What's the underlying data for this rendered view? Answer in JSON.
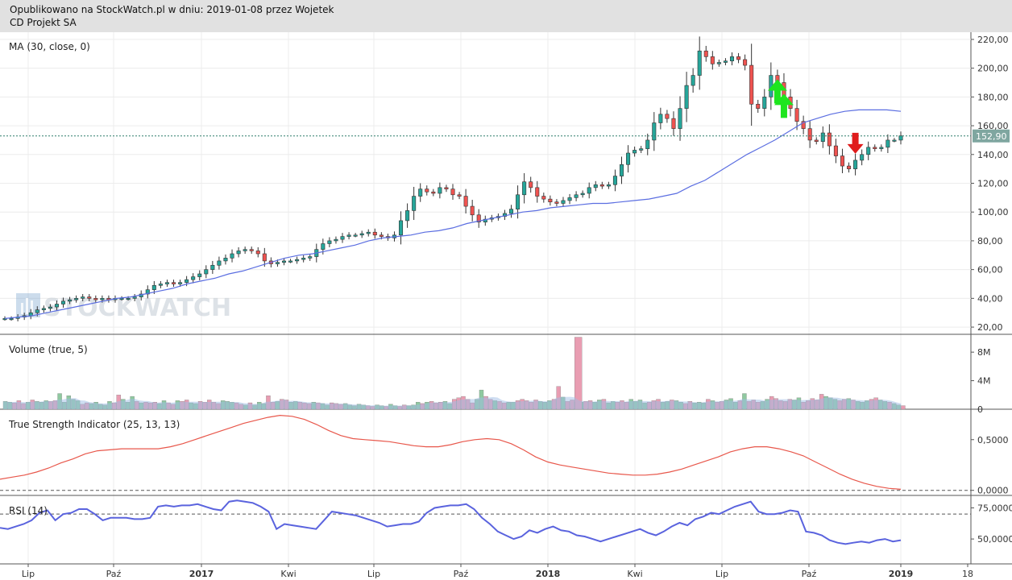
{
  "header": {
    "line1": "Opublikowano na StockWatch.pl w dniu: 2019-01-08 przez Wojetek",
    "line2": "CD Projekt SA"
  },
  "watermark": "STOCKWATCH",
  "colors": {
    "up": "#26a69a",
    "down": "#ef5350",
    "ma": "#5b6ee1",
    "tsi": "#e8574b",
    "rsi": "#5a63de",
    "buy_arrow": "#1ee51e",
    "sell_arrow": "#e01c1c",
    "last_price_bg": "#7fa6a0"
  },
  "x_axis": [
    "Lip",
    "Paź",
    "2017",
    "Kwi",
    "Lip",
    "Paź",
    "2018",
    "Kwi",
    "Lip",
    "Paź",
    "2019",
    "18"
  ],
  "chart_data": [
    {
      "type": "candlestick",
      "panel": "price",
      "title": "MA (30, close, 0)",
      "ylim": [
        15,
        225
      ],
      "yticks": [
        20,
        40,
        60,
        80,
        100,
        120,
        140,
        160,
        180,
        200,
        220
      ],
      "ytick_labels": [
        "20,00",
        "40,00",
        "60,00",
        "80,00",
        "100,00",
        "120,00",
        "140,00",
        "160,00",
        "180,00",
        "200,00",
        "220,00"
      ],
      "last_price": 152.9,
      "last_price_label": "152,90",
      "close": [
        26,
        26,
        27,
        28,
        30,
        32,
        33,
        34,
        36,
        38,
        39,
        40,
        41,
        40,
        39,
        40,
        39,
        40,
        40,
        40,
        41,
        43,
        46,
        49,
        50,
        51,
        50,
        51,
        53,
        55,
        57,
        60,
        63,
        66,
        68,
        71,
        73,
        74,
        73,
        71,
        66,
        64,
        65,
        66,
        66,
        67,
        68,
        69,
        74,
        78,
        80,
        81,
        83,
        84,
        84,
        85,
        86,
        84,
        83,
        82,
        84,
        94,
        101,
        111,
        116,
        114,
        113,
        117,
        116,
        112,
        111,
        104,
        98,
        93,
        95,
        96,
        97,
        99,
        102,
        112,
        121,
        117,
        111,
        109,
        107,
        106,
        108,
        110,
        112,
        113,
        117,
        119,
        118,
        119,
        125,
        133,
        141,
        143,
        144,
        150,
        162,
        168,
        165,
        158,
        172,
        188,
        195,
        212,
        208,
        203,
        204,
        205,
        208,
        206,
        202,
        175,
        172,
        180,
        195,
        190,
        180,
        172,
        163,
        158,
        150,
        149,
        155,
        146,
        139,
        132,
        130,
        136,
        140,
        145,
        144,
        145,
        150,
        150,
        153
      ],
      "ma30": [
        26,
        27,
        28,
        30,
        32,
        34,
        36,
        38,
        40,
        41,
        43,
        45,
        47,
        50,
        52,
        54,
        57,
        59,
        62,
        65,
        68,
        70,
        71,
        73,
        75,
        77,
        80,
        82,
        83,
        84,
        86,
        87,
        89,
        92,
        94,
        96,
        98,
        100,
        101,
        103,
        104,
        105,
        106,
        106,
        107,
        108,
        109,
        111,
        113,
        118,
        122,
        128,
        134,
        140,
        145,
        150,
        156,
        162,
        165,
        168,
        170,
        171,
        171,
        171,
        170
      ],
      "buy_signals": [
        119,
        120,
        148
      ],
      "sell_signals": [
        131,
        148
      ]
    },
    {
      "type": "bar",
      "panel": "volume",
      "title": "Volume (true, 5)",
      "ylim": [
        0,
        10.5
      ],
      "yticks": [
        0,
        4,
        8
      ],
      "ytick_labels": [
        "0",
        "4M",
        "8M"
      ],
      "values": [
        1.1,
        1.0,
        0.9,
        1.2,
        0.8,
        1.0,
        1.3,
        1.1,
        1.0,
        1.2,
        1.1,
        1.2,
        2.2,
        1.0,
        1.9,
        1.4,
        1.2,
        0.7,
        0.9,
        0.8,
        1.0,
        0.7,
        0.6,
        1.1,
        0.9,
        2.0,
        1.4,
        1.0,
        1.8,
        1.1,
        0.9,
        1.0,
        0.9,
        1.0,
        0.8,
        1.2,
        0.9,
        0.7,
        1.2,
        1.1,
        1.3,
        0.9,
        0.8,
        1.1,
        1.0,
        1.3,
        1.0,
        0.8,
        1.2,
        1.1,
        1.0,
        0.9,
        0.7,
        0.6,
        0.9,
        0.6,
        1.0,
        0.8,
        1.9,
        1.0,
        1.1,
        1.4,
        1.3,
        1.0,
        1.1,
        1.0,
        0.9,
        0.8,
        1.0,
        0.9,
        0.8,
        0.6,
        0.9,
        0.8,
        0.7,
        0.8,
        0.6,
        0.5,
        0.7,
        0.6,
        0.5,
        0.4,
        0.6,
        0.5,
        0.4,
        0.7,
        0.5,
        0.4,
        0.6,
        0.5,
        0.6,
        1.0,
        0.8,
        1.0,
        1.1,
        0.9,
        1.0,
        1.1,
        0.8,
        1.4,
        1.6,
        1.8,
        1.4,
        0.9,
        1.4,
        2.7,
        1.8,
        1.4,
        1.2,
        1.1,
        0.9,
        1.0,
        1.0,
        1.2,
        1.4,
        1.2,
        1.0,
        1.3,
        1.1,
        1.0,
        1.2,
        1.4,
        3.2,
        1.7,
        1.1,
        1.3,
        1.0,
        1.0,
        1.1,
        1.2,
        1.0,
        1.3,
        1.4,
        0.9,
        1.1,
        1.0,
        1.2,
        1.0,
        1.4,
        1.1,
        1.3,
        0.9,
        1.0,
        1.2,
        1.4,
        1.0,
        1.1,
        1.3,
        1.2,
        1.0,
        0.8,
        1.1,
        0.9,
        1.0,
        0.9,
        1.4,
        1.2,
        1.0,
        1.1,
        1.3,
        1.5,
        1.0,
        1.2,
        2.2,
        1.1,
        1.3,
        1.0,
        1.1,
        1.4,
        1.8,
        1.5,
        1.2,
        1.1,
        1.4,
        1.3,
        1.6,
        1.0,
        1.2,
        1.5,
        1.3,
        2.1,
        1.8,
        1.6,
        1.4,
        1.2,
        1.4,
        1.5,
        1.3,
        1.1,
        1.0,
        1.2,
        1.4,
        1.6,
        1.3,
        1.1,
        1.0,
        0.8,
        0.6,
        0.5
      ],
      "highlight": {
        "index": 126,
        "value": 10.1
      }
    },
    {
      "type": "line",
      "panel": "tsi",
      "title": "True Strength Indicator (25, 13, 13)",
      "ylim": [
        -0.05,
        0.8
      ],
      "yticks": [
        0,
        0.5
      ],
      "ytick_labels": [
        "0,0000",
        "0,5000"
      ],
      "values": [
        0.11,
        0.13,
        0.15,
        0.18,
        0.22,
        0.27,
        0.31,
        0.36,
        0.39,
        0.4,
        0.41,
        0.41,
        0.41,
        0.41,
        0.43,
        0.46,
        0.5,
        0.54,
        0.58,
        0.62,
        0.66,
        0.69,
        0.72,
        0.74,
        0.73,
        0.7,
        0.65,
        0.59,
        0.54,
        0.51,
        0.5,
        0.49,
        0.48,
        0.46,
        0.44,
        0.43,
        0.43,
        0.45,
        0.48,
        0.5,
        0.51,
        0.5,
        0.46,
        0.4,
        0.33,
        0.28,
        0.25,
        0.23,
        0.21,
        0.19,
        0.17,
        0.16,
        0.15,
        0.15,
        0.16,
        0.18,
        0.21,
        0.25,
        0.29,
        0.33,
        0.38,
        0.41,
        0.43,
        0.43,
        0.41,
        0.38,
        0.34,
        0.28,
        0.22,
        0.16,
        0.11,
        0.07,
        0.04,
        0.02,
        0.01
      ]
    },
    {
      "type": "line",
      "panel": "rsi",
      "title": "RSI (14)",
      "ylim": [
        30,
        85
      ],
      "yticks": [
        50,
        75
      ],
      "ytick_labels": [
        "50,0000",
        "75,0000"
      ],
      "dashed_levels": [
        70,
        30
      ],
      "values": [
        59,
        58,
        60,
        62,
        65,
        71,
        73,
        65,
        70,
        71,
        74,
        74,
        70,
        65,
        67,
        67,
        67,
        66,
        66,
        67,
        76,
        77,
        76,
        77,
        77,
        78,
        76,
        74,
        73,
        80,
        81,
        80,
        79,
        76,
        72,
        58,
        62,
        61,
        60,
        59,
        58,
        65,
        72,
        71,
        70,
        69,
        67,
        65,
        63,
        60,
        61,
        62,
        62,
        64,
        71,
        75,
        76,
        77,
        77,
        78,
        74,
        67,
        62,
        56,
        53,
        50,
        52,
        57,
        55,
        58,
        60,
        57,
        56,
        53,
        52,
        50,
        48,
        50,
        52,
        54,
        56,
        58,
        55,
        53,
        56,
        60,
        63,
        61,
        66,
        68,
        71,
        70,
        73,
        76,
        78,
        80,
        72,
        70,
        70,
        71,
        73,
        72,
        56,
        55,
        53,
        49,
        47,
        46,
        47,
        48,
        47,
        49,
        50,
        48,
        49
      ],
      "x_end_fraction": 0.93
    }
  ]
}
